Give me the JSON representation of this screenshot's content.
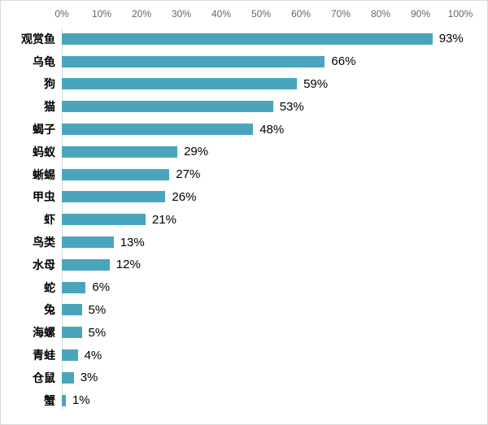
{
  "chart_data": {
    "type": "bar",
    "orientation": "horizontal",
    "title": "",
    "xlabel": "",
    "ylabel": "",
    "xlim": [
      0,
      100
    ],
    "x_ticks": [
      "0%",
      "10%",
      "20%",
      "30%",
      "40%",
      "50%",
      "60%",
      "70%",
      "80%",
      "90%",
      "100%"
    ],
    "grid": "off",
    "legend": "none",
    "bar_color": "#4aa5bc",
    "axis_line_color": "#d9d9d9",
    "tick_label_color": "#666666",
    "value_label_color": "#000000",
    "categories": [
      "观赏鱼",
      "乌龟",
      "狗",
      "猫",
      "蝎子",
      "蚂蚁",
      "蜥蜴",
      "甲虫",
      "虾",
      "鸟类",
      "水母",
      "蛇",
      "兔",
      "海螺",
      "青蛙",
      "仓鼠",
      "蟹"
    ],
    "values": [
      93,
      66,
      59,
      53,
      48,
      29,
      27,
      26,
      21,
      13,
      12,
      6,
      5,
      5,
      4,
      3,
      1
    ],
    "value_labels": [
      "93%",
      "66%",
      "59%",
      "53%",
      "48%",
      "29%",
      "27%",
      "26%",
      "21%",
      "13%",
      "12%",
      "6%",
      "5%",
      "5%",
      "4%",
      "3%",
      "1%"
    ]
  }
}
